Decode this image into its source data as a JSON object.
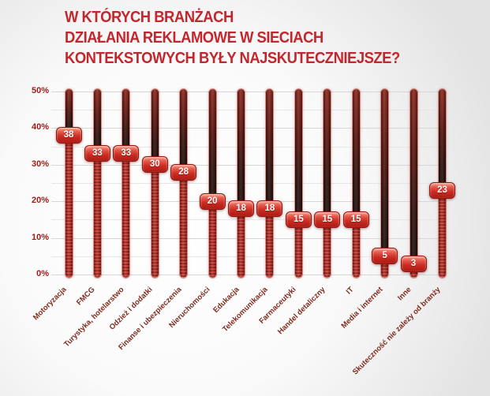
{
  "title": {
    "lines": [
      "W KTÓRYCH BRANŻACH",
      "DZIAŁANIA REKLAMOWE W SIECIACH",
      "KONTEKSTOWYCH BYŁY NAJSKUTECZNIEJSZE?"
    ]
  },
  "colors": {
    "title_red": "#c1272d",
    "axis_tick_red": "#9c1b16",
    "category_label_red": "#7f2a1d",
    "badge_red": "#cb2c22",
    "track_dark": "#1e0f0b",
    "stripe_red": "#d23a30",
    "gridline_gray": "#e6e6e6"
  },
  "chart_data": {
    "type": "bar",
    "style": "vertical-slider-infographic",
    "title": "W których branżach działania reklamowe w sieciach kontekstowych były najskuteczniejsze?",
    "unit": "%",
    "categories": [
      "Motoryzacja",
      "FMCG",
      "Turystyka, hotelarstwo",
      "Odzież i dodatki",
      "Finanse i ubezpieczenia",
      "Nieruchomości",
      "Edukacja",
      "Telekomunikacja",
      "Farmaceutyki",
      "Handel detaliczny",
      "IT",
      "Media i internet",
      "Inne",
      "Skuteczność nie zależy od branży"
    ],
    "values": [
      38,
      33,
      33,
      30,
      28,
      20,
      18,
      18,
      15,
      15,
      15,
      5,
      3,
      23
    ],
    "ylim": [
      0,
      50
    ],
    "ytick_labels": [
      "0%",
      "10%",
      "20%",
      "30%",
      "40%",
      "50%"
    ],
    "grid": "horizontal lines every 5%, light gray",
    "legend": "none",
    "xlabel": "",
    "ylabel": ""
  }
}
